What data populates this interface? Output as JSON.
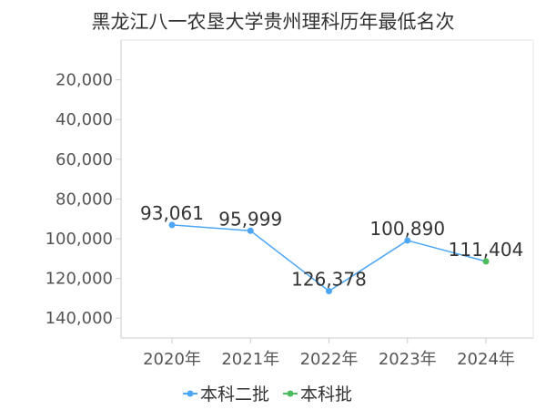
{
  "chart_data": {
    "type": "line",
    "title": "黑龙江八一农垦大学贵州理科历年最低名次",
    "xlabel": "",
    "ylabel": "",
    "categories": [
      "2020年",
      "2021年",
      "2022年",
      "2023年",
      "2024年"
    ],
    "points": [
      {
        "category": "2020年",
        "value": 93061,
        "label": "93,061",
        "series": "本科二批"
      },
      {
        "category": "2021年",
        "value": 95999,
        "label": "95,999",
        "series": "本科二批"
      },
      {
        "category": "2022年",
        "value": 126378,
        "label": "126,378",
        "series": "本科二批"
      },
      {
        "category": "2023年",
        "value": 100890,
        "label": "100,890",
        "series": "本科二批"
      },
      {
        "category": "2024年",
        "value": 111404,
        "label": "111,404",
        "series": "本科批"
      }
    ],
    "series": [
      {
        "name": "本科二批",
        "color": "#4da6f5"
      },
      {
        "name": "本科批",
        "color": "#4cbb5e"
      }
    ],
    "y_axis": {
      "reversed": true,
      "ylim": [
        0,
        150000
      ],
      "ticks": [
        20000,
        40000,
        60000,
        80000,
        100000,
        120000,
        140000
      ],
      "tick_labels": [
        "20,000",
        "40,000",
        "60,000",
        "80,000",
        "100,000",
        "120,000",
        "140,000"
      ]
    },
    "grid": false,
    "legend_position": "bottom-center",
    "line_color": "#4da6f5"
  }
}
